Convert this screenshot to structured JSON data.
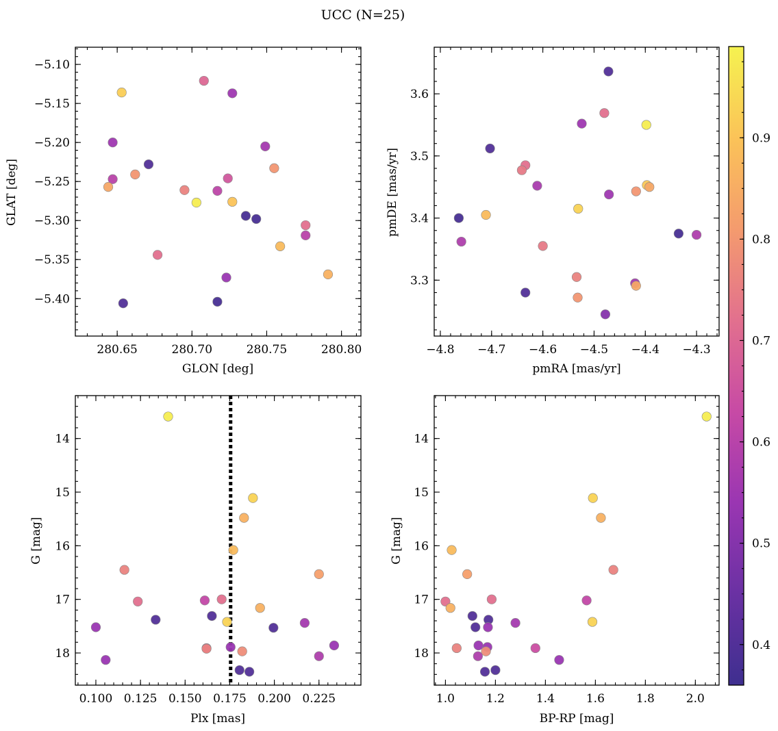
{
  "figure": {
    "title": "UCC (N=25)"
  },
  "chart_data": [
    {
      "type": "scatter",
      "id": "sky",
      "xlabel": "GLON [deg]",
      "ylabel": "GLAT [deg]",
      "xlim": [
        280.622,
        280.813
      ],
      "ylim": [
        -5.448,
        -5.078
      ],
      "xticks": [
        280.65,
        280.7,
        280.75,
        280.8
      ],
      "xtick_labels": [
        "280.65",
        "280.70",
        "280.75",
        "280.80"
      ],
      "yticks": [
        -5.1,
        -5.15,
        -5.2,
        -5.25,
        -5.3,
        -5.35,
        -5.4
      ],
      "ytick_labels": [
        "−5.10",
        "−5.15",
        "−5.20",
        "−5.25",
        "−5.30",
        "−5.35",
        "−5.40"
      ],
      "y_inverted": false,
      "points": [
        {
          "x": 280.653,
          "y": -5.136,
          "c": 0.92
        },
        {
          "x": 280.708,
          "y": -5.121,
          "c": 0.7
        },
        {
          "x": 280.727,
          "y": -5.137,
          "c": 0.55
        },
        {
          "x": 280.647,
          "y": -5.2,
          "c": 0.55
        },
        {
          "x": 280.749,
          "y": -5.205,
          "c": 0.56
        },
        {
          "x": 280.671,
          "y": -5.228,
          "c": 0.4
        },
        {
          "x": 280.662,
          "y": -5.241,
          "c": 0.8
        },
        {
          "x": 280.647,
          "y": -5.247,
          "c": 0.6
        },
        {
          "x": 280.724,
          "y": -5.246,
          "c": 0.66
        },
        {
          "x": 280.755,
          "y": -5.233,
          "c": 0.8
        },
        {
          "x": 280.644,
          "y": -5.257,
          "c": 0.84
        },
        {
          "x": 280.695,
          "y": -5.261,
          "c": 0.76
        },
        {
          "x": 280.717,
          "y": -5.262,
          "c": 0.61
        },
        {
          "x": 280.703,
          "y": -5.277,
          "c": 0.98
        },
        {
          "x": 280.727,
          "y": -5.276,
          "c": 0.9
        },
        {
          "x": 280.736,
          "y": -5.294,
          "c": 0.38
        },
        {
          "x": 280.743,
          "y": -5.298,
          "c": 0.38
        },
        {
          "x": 280.776,
          "y": -5.306,
          "c": 0.72
        },
        {
          "x": 280.776,
          "y": -5.319,
          "c": 0.6
        },
        {
          "x": 280.759,
          "y": -5.333,
          "c": 0.88
        },
        {
          "x": 280.677,
          "y": -5.344,
          "c": 0.72
        },
        {
          "x": 280.723,
          "y": -5.373,
          "c": 0.54
        },
        {
          "x": 280.791,
          "y": -5.369,
          "c": 0.86
        },
        {
          "x": 280.654,
          "y": -5.406,
          "c": 0.4
        },
        {
          "x": 280.717,
          "y": -5.404,
          "c": 0.38
        }
      ]
    },
    {
      "type": "scatter",
      "id": "pm",
      "xlabel": "pmRA [mas/yr]",
      "ylabel": "pmDE [mas/yr]",
      "xlim": [
        -4.812,
        -4.256
      ],
      "ylim": [
        3.21,
        3.675
      ],
      "xticks": [
        -4.8,
        -4.7,
        -4.6,
        -4.5,
        -4.4,
        -4.3
      ],
      "xtick_labels": [
        "−4.8",
        "−4.7",
        "−4.6",
        "−4.5",
        "−4.4",
        "−4.3"
      ],
      "yticks": [
        3.3,
        3.4,
        3.5,
        3.6
      ],
      "ytick_labels": [
        "3.3",
        "3.4",
        "3.5",
        "3.6"
      ],
      "y_inverted": false,
      "points": [
        {
          "x": -4.472,
          "y": 3.636,
          "c": 0.4
        },
        {
          "x": -4.48,
          "y": 3.569,
          "c": 0.72
        },
        {
          "x": -4.524,
          "y": 3.552,
          "c": 0.55
        },
        {
          "x": -4.398,
          "y": 3.55,
          "c": 0.98
        },
        {
          "x": -4.703,
          "y": 3.512,
          "c": 0.4
        },
        {
          "x": -4.634,
          "y": 3.485,
          "c": 0.72
        },
        {
          "x": -4.641,
          "y": 3.477,
          "c": 0.74
        },
        {
          "x": -4.611,
          "y": 3.452,
          "c": 0.57
        },
        {
          "x": -4.397,
          "y": 3.453,
          "c": 0.91
        },
        {
          "x": -4.392,
          "y": 3.45,
          "c": 0.84
        },
        {
          "x": -4.418,
          "y": 3.443,
          "c": 0.8
        },
        {
          "x": -4.471,
          "y": 3.438,
          "c": 0.55
        },
        {
          "x": -4.531,
          "y": 3.415,
          "c": 0.93
        },
        {
          "x": -4.711,
          "y": 3.405,
          "c": 0.88
        },
        {
          "x": -4.764,
          "y": 3.4,
          "c": 0.38
        },
        {
          "x": -4.335,
          "y": 3.375,
          "c": 0.38
        },
        {
          "x": -4.3,
          "y": 3.373,
          "c": 0.58
        },
        {
          "x": -4.759,
          "y": 3.362,
          "c": 0.58
        },
        {
          "x": -4.6,
          "y": 3.355,
          "c": 0.74
        },
        {
          "x": -4.534,
          "y": 3.305,
          "c": 0.76
        },
        {
          "x": -4.42,
          "y": 3.295,
          "c": 0.56
        },
        {
          "x": -4.418,
          "y": 3.291,
          "c": 0.84
        },
        {
          "x": -4.634,
          "y": 3.28,
          "c": 0.4
        },
        {
          "x": -4.532,
          "y": 3.272,
          "c": 0.8
        },
        {
          "x": -4.478,
          "y": 3.245,
          "c": 0.5
        }
      ]
    },
    {
      "type": "scatter",
      "id": "plx",
      "xlabel": "Plx [mas]",
      "ylabel": "G [mag]",
      "xlim": [
        0.0885,
        0.2485
      ],
      "ylim": [
        18.6,
        13.2
      ],
      "xticks": [
        0.1,
        0.125,
        0.15,
        0.175,
        0.2,
        0.225
      ],
      "xtick_labels": [
        "0.100",
        "0.125",
        "0.150",
        "0.175",
        "0.200",
        "0.225"
      ],
      "yticks": [
        14,
        15,
        16,
        17,
        18
      ],
      "ytick_labels": [
        "14",
        "15",
        "16",
        "17",
        "18"
      ],
      "y_inverted": true,
      "vline_x": 0.1755,
      "points": [
        {
          "x": 0.1405,
          "y": 13.59,
          "c": 0.98
        },
        {
          "x": 0.188,
          "y": 15.11,
          "c": 0.93
        },
        {
          "x": 0.183,
          "y": 15.48,
          "c": 0.86
        },
        {
          "x": 0.177,
          "y": 16.08,
          "c": 0.88
        },
        {
          "x": 0.116,
          "y": 16.45,
          "c": 0.76
        },
        {
          "x": 0.225,
          "y": 16.53,
          "c": 0.82
        },
        {
          "x": 0.1235,
          "y": 17.04,
          "c": 0.72
        },
        {
          "x": 0.161,
          "y": 17.02,
          "c": 0.62
        },
        {
          "x": 0.1705,
          "y": 17.0,
          "c": 0.72
        },
        {
          "x": 0.192,
          "y": 17.16,
          "c": 0.86
        },
        {
          "x": 0.165,
          "y": 17.31,
          "c": 0.4
        },
        {
          "x": 0.1335,
          "y": 17.38,
          "c": 0.4
        },
        {
          "x": 0.1735,
          "y": 17.42,
          "c": 0.93
        },
        {
          "x": 0.217,
          "y": 17.44,
          "c": 0.56
        },
        {
          "x": 0.1,
          "y": 17.52,
          "c": 0.54
        },
        {
          "x": 0.1995,
          "y": 17.53,
          "c": 0.4
        },
        {
          "x": 0.2335,
          "y": 17.86,
          "c": 0.54
        },
        {
          "x": 0.162,
          "y": 17.91,
          "c": 0.64
        },
        {
          "x": 0.162,
          "y": 17.92,
          "c": 0.76
        },
        {
          "x": 0.1755,
          "y": 17.89,
          "c": 0.54
        },
        {
          "x": 0.182,
          "y": 17.97,
          "c": 0.78
        },
        {
          "x": 0.225,
          "y": 18.06,
          "c": 0.58
        },
        {
          "x": 0.1055,
          "y": 18.13,
          "c": 0.54
        },
        {
          "x": 0.1805,
          "y": 18.32,
          "c": 0.4
        },
        {
          "x": 0.186,
          "y": 18.35,
          "c": 0.4
        }
      ]
    },
    {
      "type": "scatter",
      "id": "cmd",
      "xlabel": "BP-RP [mag]",
      "ylabel": "G [mag]",
      "xlim": [
        0.955,
        2.095
      ],
      "ylim": [
        18.6,
        13.2
      ],
      "xticks": [
        1.0,
        1.2,
        1.4,
        1.6,
        1.8,
        2.0
      ],
      "xtick_labels": [
        "1.0",
        "1.2",
        "1.4",
        "1.6",
        "1.8",
        "2.0"
      ],
      "yticks": [
        14,
        15,
        16,
        17,
        18
      ],
      "ytick_labels": [
        "14",
        "15",
        "16",
        "17",
        "18"
      ],
      "y_inverted": true,
      "points": [
        {
          "x": 2.045,
          "y": 13.59,
          "c": 0.98
        },
        {
          "x": 1.59,
          "y": 15.11,
          "c": 0.93
        },
        {
          "x": 1.622,
          "y": 15.48,
          "c": 0.86
        },
        {
          "x": 1.025,
          "y": 16.08,
          "c": 0.88
        },
        {
          "x": 1.672,
          "y": 16.45,
          "c": 0.76
        },
        {
          "x": 1.087,
          "y": 16.53,
          "c": 0.82
        },
        {
          "x": 1.0,
          "y": 17.04,
          "c": 0.72
        },
        {
          "x": 1.185,
          "y": 17.0,
          "c": 0.72
        },
        {
          "x": 1.565,
          "y": 17.02,
          "c": 0.62
        },
        {
          "x": 1.02,
          "y": 17.16,
          "c": 0.86
        },
        {
          "x": 1.108,
          "y": 17.31,
          "c": 0.4
        },
        {
          "x": 1.172,
          "y": 17.38,
          "c": 0.4
        },
        {
          "x": 1.588,
          "y": 17.42,
          "c": 0.93
        },
        {
          "x": 1.28,
          "y": 17.44,
          "c": 0.56
        },
        {
          "x": 1.12,
          "y": 17.52,
          "c": 0.4
        },
        {
          "x": 1.17,
          "y": 17.52,
          "c": 0.54
        },
        {
          "x": 1.132,
          "y": 17.86,
          "c": 0.54
        },
        {
          "x": 1.168,
          "y": 17.89,
          "c": 0.54
        },
        {
          "x": 1.045,
          "y": 17.91,
          "c": 0.76
        },
        {
          "x": 1.36,
          "y": 17.91,
          "c": 0.64
        },
        {
          "x": 1.162,
          "y": 17.97,
          "c": 0.78
        },
        {
          "x": 1.13,
          "y": 18.06,
          "c": 0.58
        },
        {
          "x": 1.455,
          "y": 18.13,
          "c": 0.54
        },
        {
          "x": 1.2,
          "y": 18.32,
          "c": 0.4
        },
        {
          "x": 1.158,
          "y": 18.35,
          "c": 0.4
        }
      ]
    }
  ],
  "colorbar": {
    "colormap": "plasma",
    "range": [
      0.36,
      0.99
    ],
    "ticks": [
      0.4,
      0.5,
      0.6,
      0.7,
      0.8,
      0.9
    ],
    "tick_labels": [
      "0.4",
      "0.5",
      "0.6",
      "0.7",
      "0.8",
      "0.9"
    ],
    "colors": [
      "#3e2f8f",
      "#6a31a3",
      "#9a36b2",
      "#c74aa5",
      "#e2708e",
      "#f49b6e",
      "#fbc358",
      "#f5f250"
    ],
    "point_edge_color": "#888888"
  }
}
